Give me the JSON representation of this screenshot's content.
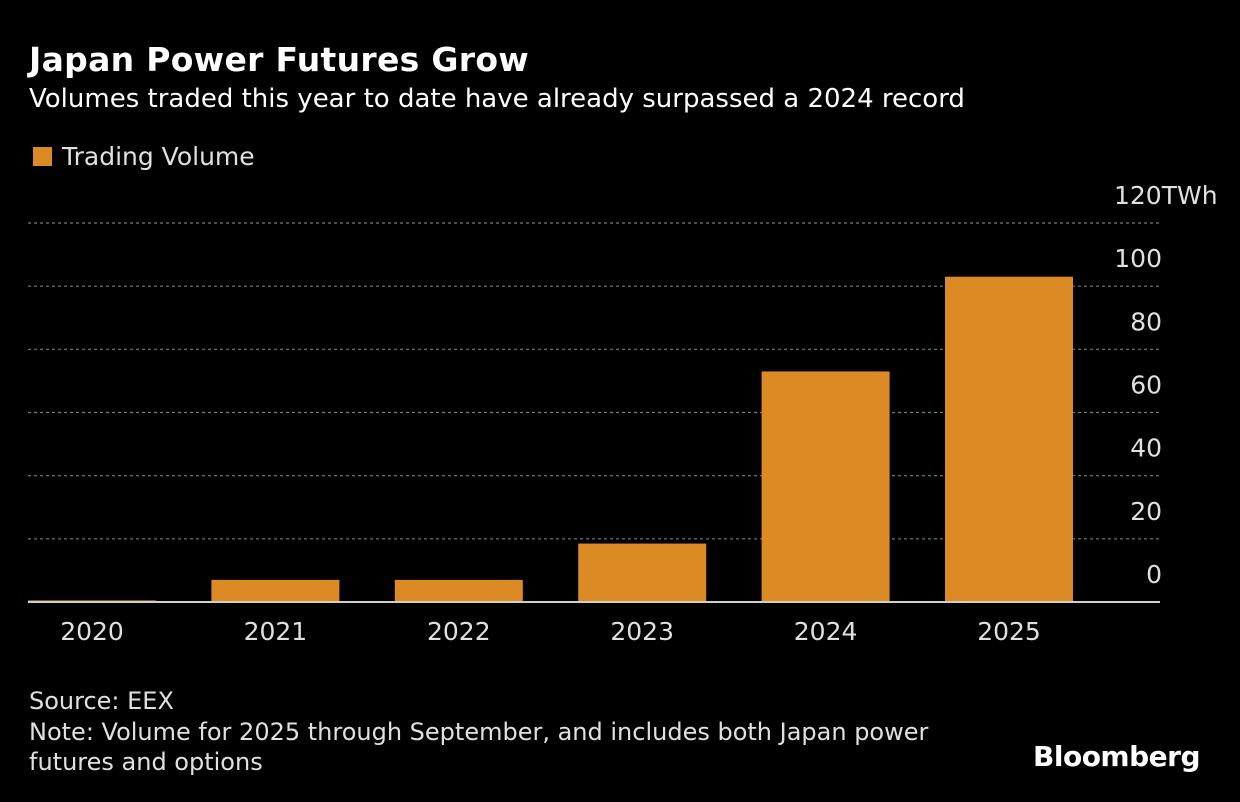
{
  "header": {
    "title": "Japan Power Futures Grow",
    "subtitle": "Volumes traded this year to date have already surpassed a 2024 record"
  },
  "colors": {
    "bar": "#db8a24",
    "grid": "#7a7a7a",
    "axis": "#cfcfcf",
    "tick_text": "#e0e0e0"
  },
  "chart_data": {
    "type": "bar",
    "title": "Japan Power Futures Grow",
    "subtitle": "Volumes traded this year to date have already surpassed a 2024 record",
    "categories": [
      "2020",
      "2021",
      "2022",
      "2023",
      "2024",
      "2025"
    ],
    "series": [
      {
        "name": "Trading Volume",
        "values": [
          0.5,
          7,
          7,
          18.5,
          73,
          103
        ]
      }
    ],
    "xlabel": "",
    "ylabel": "",
    "ylim": [
      0,
      120
    ],
    "yticks": [
      0,
      20,
      40,
      60,
      80,
      100,
      120
    ],
    "ytick_labels": [
      "0",
      "20",
      "40",
      "60",
      "80",
      "100",
      "120TWh"
    ],
    "y_axis_side": "right",
    "grid": true,
    "legend_position": "top-left"
  },
  "footer": {
    "source": "Source: EEX",
    "note_line1": "Note: Volume for 2025 through September, and includes both Japan power",
    "note_line2": "futures and options",
    "brand": "Bloomberg"
  }
}
